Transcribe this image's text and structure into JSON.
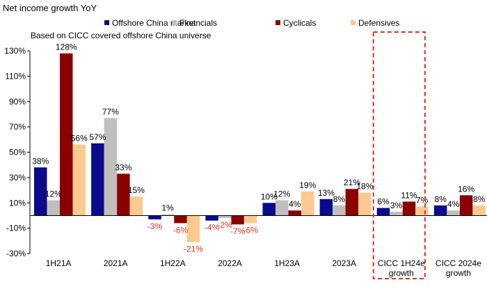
{
  "chart_data": {
    "type": "bar",
    "title": "Net income growth YoY",
    "subtitle": "Based on CICC covered offshore China universe",
    "categories": [
      "1H21A",
      "2021A",
      "1H22A",
      "2022A",
      "1H23A",
      "2023A",
      "CICC 1H24e growth",
      "CICC 2024e growth"
    ],
    "category_lines": [
      [
        "1H21A"
      ],
      [
        "2021A"
      ],
      [
        "1H22A"
      ],
      [
        "2022A"
      ],
      [
        "1H23A"
      ],
      [
        "2023A"
      ],
      [
        "CICC 1H24e",
        "growth"
      ],
      [
        "CICC 2024e",
        "growth"
      ]
    ],
    "series": [
      {
        "name": "Offshore China market",
        "color": "#0a0a8c",
        "values": [
          38,
          57,
          -3,
          -4,
          10,
          13,
          6,
          8
        ],
        "labels": [
          "38%",
          "57%",
          "-3%",
          "-4%",
          "10%",
          "13%",
          "6%",
          "8%"
        ]
      },
      {
        "name": "Financials",
        "color": "#bfbfbf",
        "values": [
          12,
          77,
          1,
          -2,
          12,
          8,
          3,
          4
        ],
        "labels": [
          "12%",
          "77%",
          "1%",
          "-2%",
          "12%",
          "8%",
          "3%",
          "4%"
        ]
      },
      {
        "name": "Cyclicals",
        "color": "#8b0000",
        "values": [
          128,
          33,
          -6,
          -7,
          4,
          21,
          11,
          16
        ],
        "labels": [
          "128%",
          "33%",
          "-6%",
          "-7%",
          "4%",
          "21%",
          "11%",
          "16%"
        ]
      },
      {
        "name": "Defensives",
        "color": "#fcc98f",
        "values": [
          56,
          15,
          -21,
          -6,
          19,
          18,
          7,
          8
        ],
        "labels": [
          "56%",
          "15%",
          "-21%",
          "-6%",
          "19%",
          "18%",
          "7%",
          "8%"
        ]
      }
    ],
    "ylim": [
      -30,
      130
    ],
    "yticks": [
      -30,
      -10,
      10,
      30,
      50,
      70,
      90,
      110,
      130
    ],
    "ytick_labels": [
      "-30%",
      "-10%",
      "10%",
      "30%",
      "50%",
      "70%",
      "90%",
      "110%",
      "130%"
    ],
    "negative_label_color": "#e0301e",
    "highlight": {
      "category_index": 6,
      "style": "red dashed box",
      "color": "#e0301e"
    },
    "legend_position": "top",
    "grid": false
  }
}
